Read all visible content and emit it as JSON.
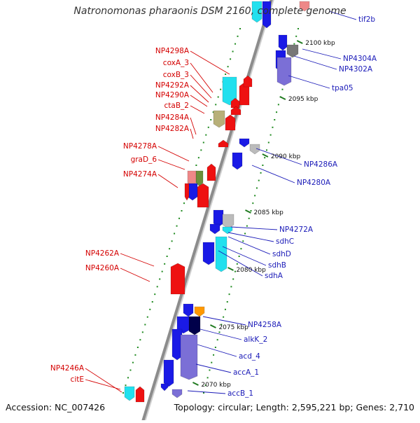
{
  "title": "Natronomonas pharaonis DSM 2160, complete genome",
  "footer": {
    "accession": "Accession: NC_007426",
    "topology": "Topology: circular; Length: 2,595,221 bp; Genes: 2,710"
  },
  "colors": {
    "reverse_label": "#d40000",
    "forward_label": "#1a1ab8",
    "backbone": "#8c8c8c",
    "tick": "#1f7a1f"
  },
  "ticks": [
    "2100 kbp",
    "2095 kbp",
    "2090 kbp",
    "2085 kbp",
    "2080 kbp",
    "2075 kbp",
    "2070 kbp"
  ],
  "reverse_genes": [
    "NP4298A",
    "coxA_3",
    "coxB_3",
    "NP4292A",
    "NP4290A",
    "ctaB_2",
    "NP4284A",
    "NP4282A",
    "NP4278A",
    "graD_6",
    "NP4274A",
    "NP4262A",
    "NP4260A",
    "NP4246A",
    "citE"
  ],
  "forward_genes": [
    "tif2b",
    "NP4304A",
    "NP4302A",
    "tpa05",
    "NP4286A",
    "NP4280A",
    "NP4272A",
    "sdhC",
    "sdhD",
    "sdhB",
    "sdhA",
    "NP4258A",
    "alkK_2",
    "acd_4",
    "accA_1",
    "accB_1"
  ]
}
